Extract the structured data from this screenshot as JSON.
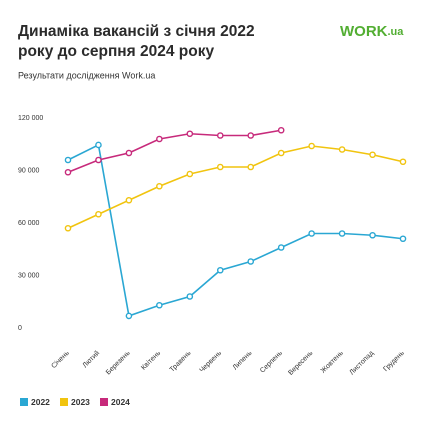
{
  "chart_data": {
    "type": "line",
    "title": [
      "Динаміка вакансій з січня 2022",
      "року до серпня 2024 року"
    ],
    "subtitle": "Результати дослідження Work.ua",
    "logo": {
      "main": "WORK",
      "suffix": ".ua"
    },
    "categories": [
      "Січень",
      "Лютий",
      "Березень",
      "Квітень",
      "Травень",
      "Червень",
      "Липень",
      "Серпень",
      "Вересень",
      "Жовтень",
      "Листопад",
      "Грудень"
    ],
    "series": [
      {
        "name": "2022",
        "color": "#2aa7d3",
        "values": [
          96000,
          104600,
          6900,
          13000,
          18000,
          33000,
          38000,
          46000,
          54000,
          54000,
          53000,
          51000
        ]
      },
      {
        "name": "2023",
        "color": "#f1c40f",
        "values": [
          57000,
          65000,
          73000,
          81000,
          88000,
          92000,
          92000,
          100000,
          104000,
          102000,
          99000,
          95000
        ]
      },
      {
        "name": "2024",
        "color": "#c72a7b",
        "values": [
          89000,
          96000,
          100000,
          108000,
          111000,
          110000,
          110000,
          113000,
          null,
          null,
          null,
          null
        ]
      }
    ],
    "ylim": [
      0,
      120000
    ],
    "yticks": [
      0,
      {
        "value": 30000,
        "label": "30 000"
      },
      {
        "value": 60000,
        "label": "60 000"
      },
      {
        "value": 90000,
        "label": "90 000"
      },
      {
        "value": 120000,
        "label": "120 000"
      }
    ],
    "grid": false
  }
}
